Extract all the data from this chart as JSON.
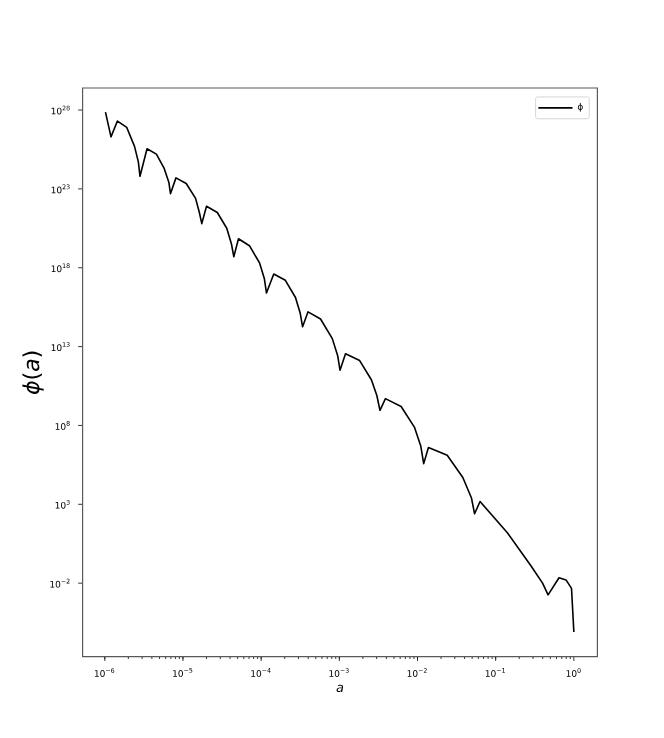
{
  "chart_data": {
    "type": "line",
    "xlabel": "a",
    "ylabel": "*ϕ*(*a*)",
    "log": "xy",
    "legend": "top right",
    "grid": false,
    "marker": "none",
    "line_style": "solid",
    "xlim": [
      5.2e-07,
      2.0
    ],
    "ylim": [
      2.2e-07,
      2.5e+29
    ],
    "xticks": [
      {
        "value": 1e-06,
        "label": "10$^{−6}$"
      },
      {
        "value": 1e-05,
        "label": "10$^{−5}$"
      },
      {
        "value": 0.0001,
        "label": "10$^{−4}$"
      },
      {
        "value": 0.001,
        "label": "10$^{−3}$"
      },
      {
        "value": 0.01,
        "label": "10$^{−2}$"
      },
      {
        "value": 0.1,
        "label": "10$^{−1}$"
      },
      {
        "value": 1,
        "label": "10$^{0}$"
      }
    ],
    "yticks": [
      {
        "value": 0.01,
        "label": "10$^{−2}$"
      },
      {
        "value": 1000.0,
        "label": "10$^{3}$"
      },
      {
        "value": 100000000.0,
        "label": "10$^{8}$"
      },
      {
        "value": 10000000000000.0,
        "label": "10$^{13}$"
      },
      {
        "value": 1e+18,
        "label": "10$^{18}$"
      },
      {
        "value": 1e+23,
        "label": "10$^{23}$"
      },
      {
        "value": 1e+28,
        "label": "10$^{28}$"
      }
    ],
    "series": [
      {
        "name": "ϕ",
        "color": "#000000",
        "x": [
          1.02e-06,
          1.2e-06,
          1.45e-06,
          1.91e-06,
          2.4e-06,
          2.69e-06,
          2.82e-06,
          3.47e-06,
          4.57e-06,
          5.75e-06,
          6.61e-06,
          6.92e-06,
          8.13e-06,
          1.1e-05,
          1.45e-05,
          1.62e-05,
          1.74e-05,
          2e-05,
          2.75e-05,
          3.63e-05,
          4.17e-05,
          4.47e-05,
          5.13e-05,
          7.08e-05,
          9.55e-05,
          0.00011,
          0.000117,
          0.000145,
          0.000204,
          0.000275,
          0.000316,
          0.000339,
          0.000398,
          0.000575,
          0.000813,
          0.000955,
          0.00102,
          0.0012,
          0.00182,
          0.00257,
          0.00302,
          0.00331,
          0.00389,
          0.00617,
          0.00912,
          0.011,
          0.012,
          0.0138,
          0.024,
          0.038,
          0.049,
          0.0537,
          0.0631,
          0.141,
          0.282,
          0.398,
          0.468,
          0.646,
          0.794,
          0.933,
          1.0
        ],
        "values": [
          7.4e+27,
          2e+26,
          2e+27,
          7.9e+26,
          5e+25,
          5e+24,
          6.3e+23,
          3.5e+25,
          1.6e+25,
          2e+24,
          2.5e+23,
          5e+22,
          5e+23,
          2.2e+23,
          2.5e+22,
          3.2e+21,
          6.3e+20,
          7.9e+21,
          3.2e+21,
          3.2e+20,
          3.2e+19,
          5e+18,
          6.9e+19,
          2.5e+19,
          2e+18,
          2e+17,
          2.5e+16,
          4e+17,
          1.6e+17,
          1.3e+16,
          1300000000000000.0,
          180000000000000.0,
          1600000000000000.0,
          560000000000000.0,
          32000000000000.0,
          2500000000000.0,
          320000000000.0,
          3500000000000.0,
          1300000000000.0,
          79000000000.0,
          7900000000.0,
          910000000.0,
          5000000000.0,
          1600000000.0,
          79000000.0,
          5000000.0,
          380000.0,
          4000000.0,
          1300000.0,
          50000.0,
          2500.0,
          251,
          1500.0,
          15.8,
          0.126,
          0.01,
          0.0018,
          0.022,
          0.016,
          0.0047,
          7.9e-06
        ]
      }
    ]
  }
}
